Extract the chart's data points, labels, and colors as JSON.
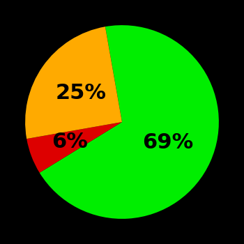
{
  "slices": [
    69,
    6,
    25
  ],
  "colors": [
    "#00ee00",
    "#dd0000",
    "#ffaa00"
  ],
  "labels": [
    "69%",
    "6%",
    "25%"
  ],
  "background_color": "#000000",
  "text_color": "#000000",
  "startangle": 100,
  "label_fontsize": 22,
  "label_fontweight": "bold",
  "label_radii": [
    0.52,
    0.58,
    0.52
  ]
}
